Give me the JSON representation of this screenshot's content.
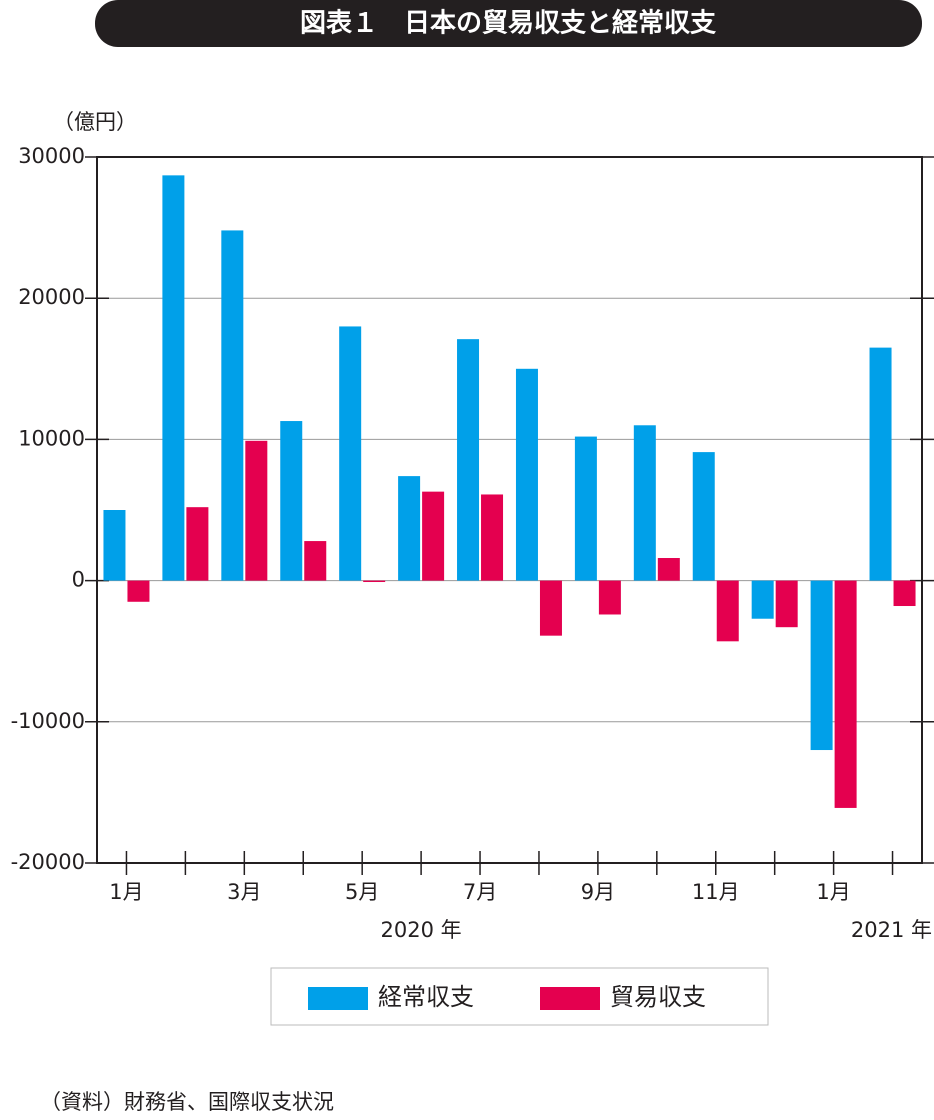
{
  "chart_data": {
    "type": "bar",
    "title": "図表１　日本の貿易収支と経常収支",
    "y_unit": "（億円）",
    "categories": [
      "1月",
      null,
      "3月",
      null,
      "5月",
      null,
      "7月",
      null,
      "9月",
      null,
      "11月",
      null,
      "1月",
      null
    ],
    "year_labels": [
      "2020 年",
      "2021 年"
    ],
    "series": [
      {
        "name": "経常収支",
        "color": "#00a0e9",
        "values": [
          5000,
          28700,
          24800,
          11300,
          18000,
          7400,
          17100,
          15000,
          10200,
          11000,
          9100,
          -2700,
          -12000,
          16500
        ]
      },
      {
        "name": "貿易収支",
        "color": "#e4004f",
        "values": [
          -1500,
          5200,
          9900,
          2800,
          -100,
          6300,
          6100,
          -3900,
          -2400,
          1600,
          -4300,
          -3300,
          -16100,
          -1800
        ]
      }
    ],
    "ylim": [
      -20000,
      30000
    ],
    "yticks": [
      -20000,
      -10000,
      0,
      10000,
      20000,
      30000
    ],
    "grid": true,
    "legend": "bottom",
    "source": "（資料）財務省、国際収支状況"
  }
}
